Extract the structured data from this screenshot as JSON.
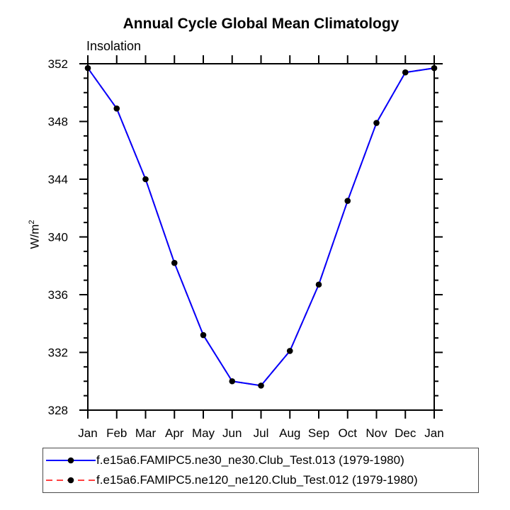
{
  "header": {
    "title": "Annual Cycle Global Mean Climatology",
    "subtitle": "Insolation"
  },
  "axes": {
    "y_label_base": "W/m",
    "y_label_exponent": "2",
    "y_tick_labels": [
      "352",
      "348",
      "344",
      "340",
      "336",
      "332",
      "328"
    ],
    "x_tick_labels": [
      "Jan",
      "Feb",
      "Mar",
      "Apr",
      "May",
      "Jun",
      "Jul",
      "Aug",
      "Sep",
      "Oct",
      "Nov",
      "Dec",
      "Jan"
    ]
  },
  "colors": {
    "series1_line": "#0000ff",
    "series2_line": "#ff4040",
    "marker_fill": "#000000",
    "axis_stroke": "#000000",
    "background": "#ffffff"
  },
  "chart_data": {
    "type": "line",
    "title": "Annual Cycle Global Mean Climatology",
    "subtitle": "Insolation",
    "ylabel": "W/m^2",
    "categories": [
      "Jan",
      "Feb",
      "Mar",
      "Apr",
      "May",
      "Jun",
      "Jul",
      "Aug",
      "Sep",
      "Oct",
      "Nov",
      "Dec",
      "Jan"
    ],
    "ylim": [
      328,
      352
    ],
    "ytick_major_interval": 4,
    "ytick_minor_interval": 1,
    "grid": false,
    "legend_position": "bottom",
    "series": [
      {
        "name": "f.e15a6.FAMIPC5.ne30_ne30.Club_Test.013 (1979-1980)",
        "color": "#0000ff",
        "line_style": "solid",
        "marker": "filled-black-circle",
        "values": [
          351.7,
          348.9,
          344.0,
          338.2,
          333.2,
          330.0,
          329.7,
          332.1,
          336.7,
          342.5,
          347.9,
          351.4,
          351.7
        ]
      },
      {
        "name": "f.e15a6.FAMIPC5.ne120_ne120.Club_Test.012 (1979-1980)",
        "color": "#ff4040",
        "line_style": "dashed",
        "marker": "filled-black-circle",
        "visible_in_plot": false,
        "values": [
          351.7,
          348.9,
          344.0,
          338.2,
          333.2,
          330.0,
          329.7,
          332.1,
          336.7,
          342.5,
          347.9,
          351.4,
          351.7
        ]
      }
    ]
  }
}
